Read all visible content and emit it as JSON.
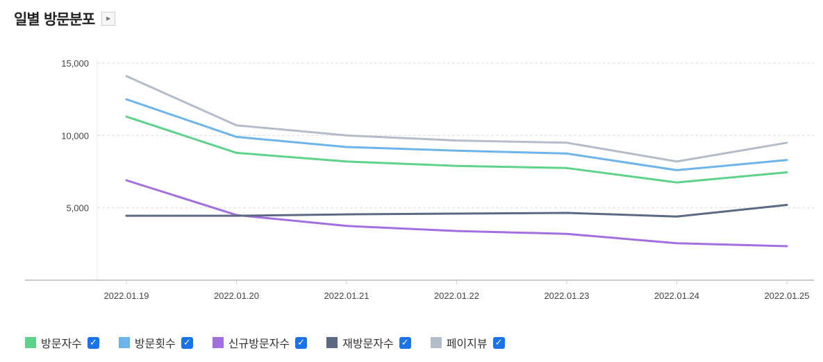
{
  "header": {
    "title": "일별 방문분포",
    "expand_icon": "play-triangle-icon"
  },
  "chart_data": {
    "type": "line",
    "title": "",
    "xlabel": "",
    "ylabel": "",
    "x": [
      "2022.01.19",
      "2022.01.20",
      "2022.01.21",
      "2022.01.22",
      "2022.01.23",
      "2022.01.24",
      "2022.01.25"
    ],
    "ylim": [
      0,
      15000
    ],
    "yticks": [
      5000,
      10000,
      15000
    ],
    "ytick_labels": [
      "5,000",
      "10,000",
      "15,000"
    ],
    "grid": true,
    "legend_position": "bottom-left",
    "series": [
      {
        "name": "방문자수",
        "color": "#5ed28a",
        "values": [
          11300,
          8800,
          8200,
          7900,
          7750,
          6750,
          7450
        ]
      },
      {
        "name": "방문횟수",
        "color": "#6cb4ea",
        "values": [
          12500,
          9900,
          9200,
          8950,
          8750,
          7600,
          8300
        ]
      },
      {
        "name": "신규방문자수",
        "color": "#a26fe0",
        "values": [
          6900,
          4500,
          3750,
          3400,
          3200,
          2550,
          2350
        ]
      },
      {
        "name": "재방문자수",
        "color": "#5b6a82",
        "values": [
          4450,
          4450,
          4550,
          4600,
          4650,
          4400,
          5200
        ]
      },
      {
        "name": "페이지뷰",
        "color": "#b3bcc9",
        "values": [
          14100,
          10700,
          10000,
          9650,
          9500,
          8200,
          9500
        ]
      }
    ]
  },
  "legend": {
    "checked": true,
    "check_icon": "checkmark-icon"
  }
}
